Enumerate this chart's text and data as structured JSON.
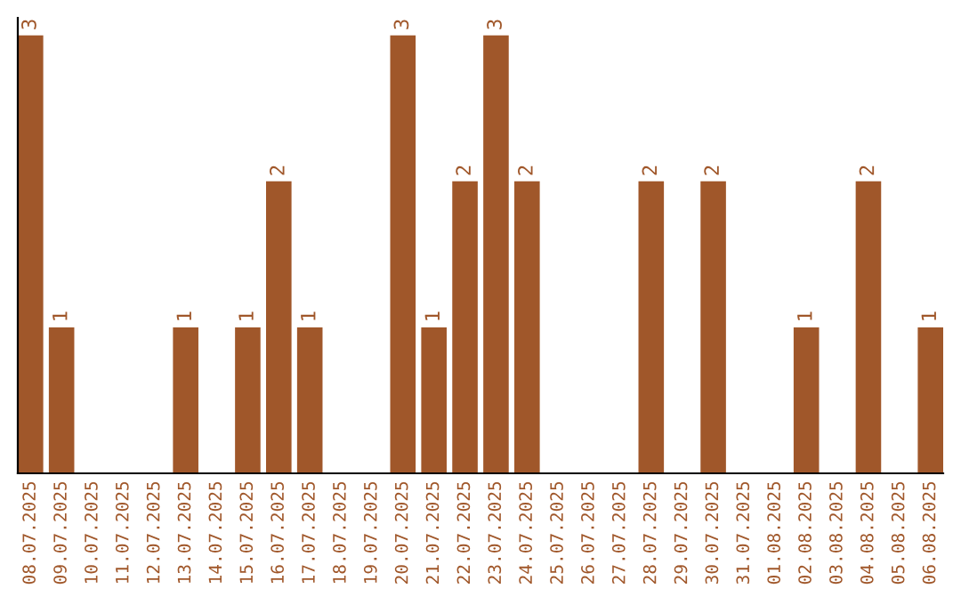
{
  "chart_data": {
    "type": "bar",
    "categories": [
      "08.07.2025",
      "09.07.2025",
      "10.07.2025",
      "11.07.2025",
      "12.07.2025",
      "13.07.2025",
      "14.07.2025",
      "15.07.2025",
      "16.07.2025",
      "17.07.2025",
      "18.07.2025",
      "19.07.2025",
      "20.07.2025",
      "21.07.2025",
      "22.07.2025",
      "23.07.2025",
      "24.07.2025",
      "25.07.2025",
      "26.07.2025",
      "27.07.2025",
      "28.07.2025",
      "29.07.2025",
      "30.07.2025",
      "31.07.2025",
      "01.08.2025",
      "02.08.2025",
      "03.08.2025",
      "04.08.2025",
      "05.08.2025",
      "06.08.2025"
    ],
    "values": [
      3,
      1,
      0,
      0,
      0,
      1,
      0,
      1,
      2,
      1,
      0,
      0,
      3,
      1,
      2,
      3,
      2,
      0,
      0,
      0,
      2,
      0,
      2,
      0,
      0,
      1,
      0,
      2,
      0,
      1
    ],
    "value_labels": [
      "3",
      "1",
      null,
      null,
      null,
      "1",
      null,
      "1",
      "2",
      "1",
      null,
      null,
      "3",
      "1",
      "2",
      "3",
      "2",
      null,
      null,
      null,
      "2",
      null,
      "2",
      null,
      null,
      "1",
      null,
      "2",
      null,
      "1"
    ],
    "color": "#a0572a",
    "tick_labels": "x",
    "grid": false
  }
}
